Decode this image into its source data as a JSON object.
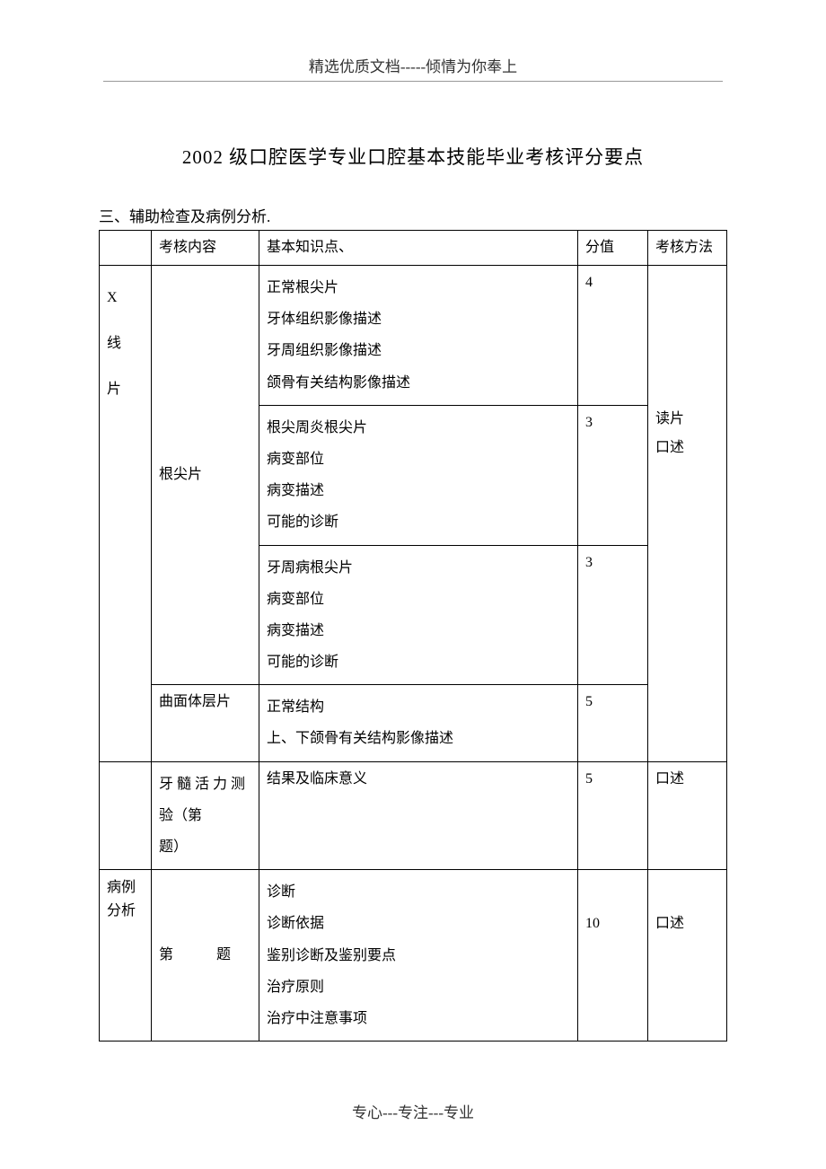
{
  "header": "精选优质文档-----倾情为你奉上",
  "footer": "专心---专注---专业",
  "title": "2002 级口腔医学专业口腔基本技能毕业考核评分要点",
  "section_label": "三、辅助检查及病例分析.",
  "table": {
    "head": {
      "c2": "考核内容",
      "c3": "基本知识点、",
      "c4": "分值",
      "c5": "考核方法"
    },
    "r1": {
      "cat_line1": "X",
      "cat_line2": "线",
      "cat_line3": "片",
      "sub": "根尖片",
      "detail": "正常根尖片\n牙体组织影像描述\n牙周组织影像描述\n颌骨有关结构影像描述",
      "score": "4",
      "method": "读片\n口述"
    },
    "r2": {
      "detail": "根尖周炎根尖片\n病变部位\n病变描述\n可能的诊断",
      "score": "3"
    },
    "r3": {
      "detail": "牙周病根尖片\n病变部位\n病变描述\n可能的诊断",
      "score": "3"
    },
    "r4": {
      "sub": "曲面体层片",
      "detail": "正常结构\n上、下颌骨有关结构影像描述",
      "score": "5"
    },
    "r5": {
      "sub": "牙 髓 活 力 测验（第　　题）",
      "detail": "结果及临床意义",
      "score": "5",
      "method": "口述"
    },
    "r6": {
      "cat": "病例\n分析",
      "sub": "第　　　题",
      "detail": "诊断\n诊断依据\n鉴别诊断及鉴别要点\n治疗原则\n治疗中注意事项",
      "score": "10",
      "method": "口述"
    }
  }
}
